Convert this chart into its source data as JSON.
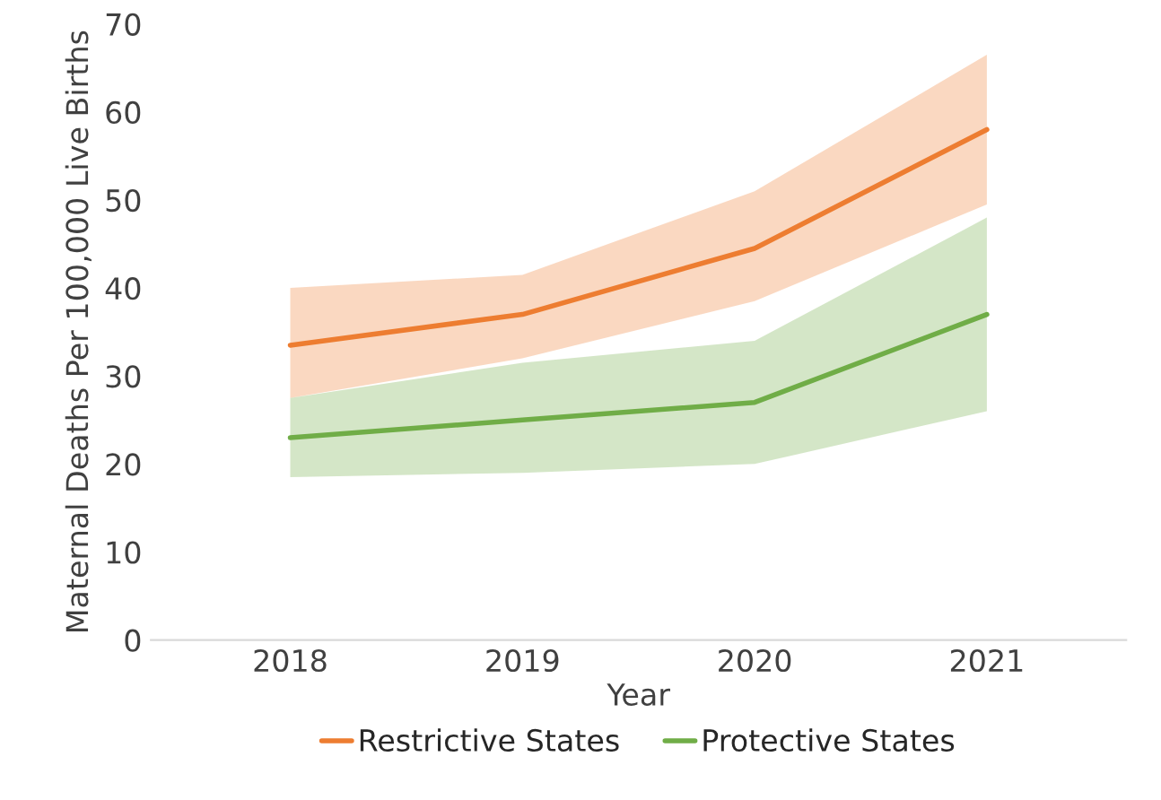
{
  "chart_data": {
    "type": "line",
    "xlabel": "Year",
    "ylabel": "Maternal Deaths Per 100,000 Live Births",
    "categories": [
      "2018",
      "2019",
      "2020",
      "2021"
    ],
    "series": [
      {
        "name": "Restrictive States",
        "color": "#ed7d31",
        "values": [
          33.5,
          37,
          44.5,
          58
        ],
        "lower": [
          27.5,
          32,
          38.5,
          49.5
        ],
        "upper": [
          40,
          41.5,
          51,
          66.5
        ]
      },
      {
        "name": "Protective States",
        "color": "#70ad47",
        "values": [
          23,
          25,
          27,
          37
        ],
        "lower": [
          18.5,
          19,
          20,
          26
        ],
        "upper": [
          27.5,
          31.5,
          34,
          48
        ]
      }
    ],
    "ylim": [
      0,
      70
    ],
    "yticks": [
      0,
      10,
      20,
      30,
      40,
      50,
      60,
      70
    ],
    "grid": false,
    "legend": "bottom",
    "line_style": "solid",
    "marker": "none"
  }
}
